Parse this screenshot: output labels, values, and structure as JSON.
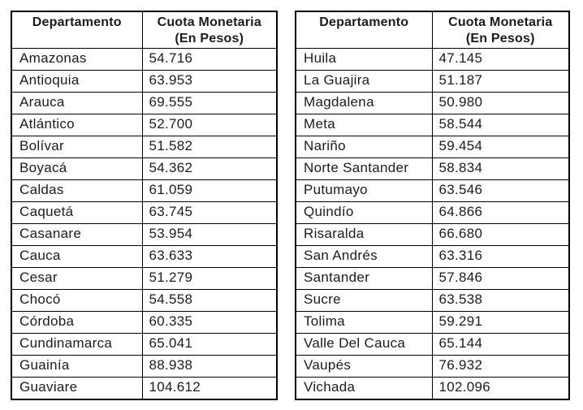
{
  "colors": {
    "background": "#ffffff",
    "border": "#000000",
    "text": "#1c1c1c"
  },
  "tables": [
    {
      "name": "departments-a-g",
      "col1_header": "Departamento",
      "col2_header_line1": "Cuota Monetaria",
      "col2_header_line2": "(En Pesos)",
      "rows": [
        [
          "Amazonas",
          "54.716"
        ],
        [
          "Antioquia",
          "63.953"
        ],
        [
          "Arauca",
          "69.555"
        ],
        [
          "Atlántico",
          "52.700"
        ],
        [
          "Bolívar",
          "51.582"
        ],
        [
          "Boyacá",
          "54.362"
        ],
        [
          "Caldas",
          "61.059"
        ],
        [
          "Caquetá",
          "63.745"
        ],
        [
          "Casanare",
          "53.954"
        ],
        [
          "Cauca",
          "63.633"
        ],
        [
          "Cesar",
          "51.279"
        ],
        [
          "Chocó",
          "54.558"
        ],
        [
          "Córdoba",
          "60.335"
        ],
        [
          "Cundinamarca",
          "65.041"
        ],
        [
          "Guainía",
          "88.938"
        ],
        [
          "Guaviare",
          "104.612"
        ]
      ]
    },
    {
      "name": "departments-h-v",
      "col1_header": "Departamento",
      "col2_header_line1": "Cuota Monetaria",
      "col2_header_line2": "(En Pesos)",
      "rows": [
        [
          "Huila",
          "47.145"
        ],
        [
          "La Guajira",
          "51.187"
        ],
        [
          "Magdalena",
          "50.980"
        ],
        [
          "Meta",
          "58.544"
        ],
        [
          "Nariño",
          "59.454"
        ],
        [
          "Norte Santander",
          "58.834"
        ],
        [
          "Putumayo",
          "63.546"
        ],
        [
          "Quindío",
          "64.866"
        ],
        [
          "Risaralda",
          "66.680"
        ],
        [
          "San Andrés",
          "63.316"
        ],
        [
          "Santander",
          "57.846"
        ],
        [
          "Sucre",
          "63.538"
        ],
        [
          "Tolima",
          "59.291"
        ],
        [
          "Valle Del Cauca",
          "65.144"
        ],
        [
          "Vaupés",
          "76.932"
        ],
        [
          "Vichada",
          "102.096"
        ]
      ]
    }
  ]
}
